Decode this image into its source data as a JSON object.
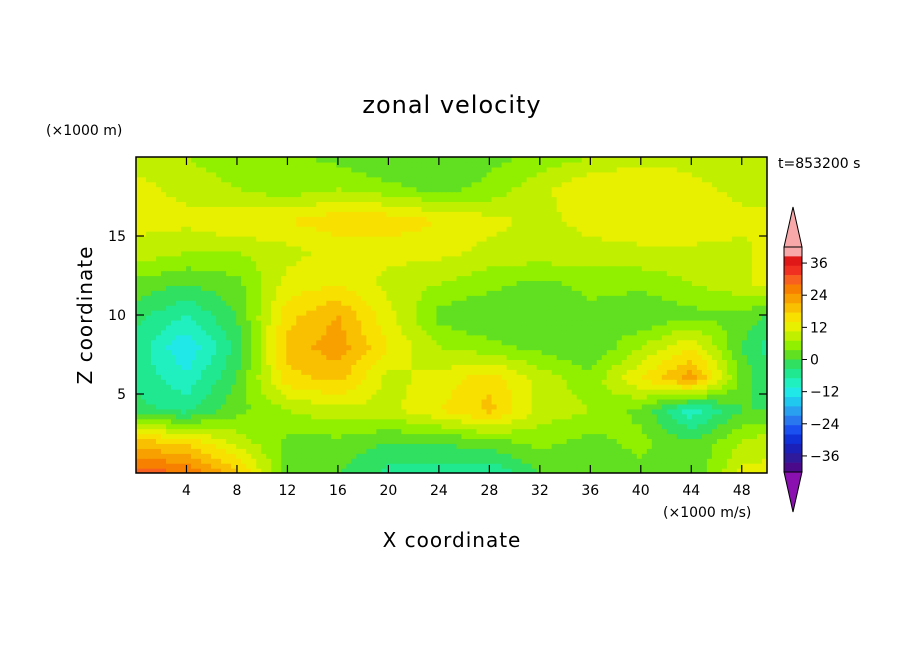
{
  "chart_data": {
    "type": "heatmap",
    "title": "zonal velocity",
    "xlabel": "X coordinate",
    "ylabel": "Z coordinate",
    "y_unit_label": "(×1000 m)",
    "x_unit_label": "(×1000 m/s)",
    "time_label": "t=853200 s",
    "xlim": [
      0,
      50
    ],
    "ylim": [
      0,
      20
    ],
    "x_ticks": [
      "4",
      "8",
      "12",
      "16",
      "20",
      "24",
      "28",
      "32",
      "36",
      "40",
      "44",
      "48"
    ],
    "y_ticks": [
      "5",
      "10",
      "15"
    ],
    "colorbar": {
      "levels": [
        -42,
        -39,
        -36,
        -33,
        -30,
        -27,
        -24,
        -21,
        -18,
        -15,
        -12,
        -9,
        -6,
        -3,
        0,
        3,
        6,
        9,
        12,
        15,
        18,
        21,
        24,
        27,
        30,
        33,
        36,
        39,
        42
      ],
      "colors": [
        "#4a0a8a",
        "#2e1a9a",
        "#1a20b8",
        "#1030d8",
        "#1a50f0",
        "#2a78f0",
        "#2aa0f0",
        "#20c8f0",
        "#20e8e8",
        "#20f0c0",
        "#20e890",
        "#30e060",
        "#60e020",
        "#90f000",
        "#c0f000",
        "#e8f000",
        "#f8e000",
        "#f8c000",
        "#f8a000",
        "#f88000",
        "#f86020",
        "#f03020",
        "#e01818",
        "#f8a8a8"
      ],
      "under_color": "#8a10b0",
      "over_color": "#f8a8a8",
      "tick_labels": [
        "36",
        "24",
        "12",
        "0",
        "−12",
        "−24",
        "−36"
      ]
    },
    "field_sample_grid": {
      "x": [
        0,
        4,
        8,
        12,
        16,
        20,
        24,
        28,
        32,
        36,
        40,
        44,
        48,
        50
      ],
      "z": [
        0,
        2,
        4,
        6,
        8,
        10,
        12,
        14,
        16,
        18,
        20
      ],
      "values": [
        [
          20,
          18,
          10,
          -4,
          -6,
          -10,
          -10,
          -12,
          -6,
          -6,
          -4,
          -6,
          4,
          4
        ],
        [
          10,
          8,
          2,
          -4,
          -4,
          -6,
          -6,
          -4,
          -2,
          -4,
          -2,
          -6,
          0,
          2
        ],
        [
          -8,
          -10,
          -4,
          0,
          2,
          2,
          6,
          10,
          2,
          0,
          -4,
          -14,
          -6,
          -6
        ],
        [
          -10,
          -14,
          -6,
          8,
          10,
          2,
          4,
          8,
          2,
          -2,
          6,
          14,
          -4,
          -8
        ],
        [
          -10,
          -18,
          -8,
          10,
          14,
          6,
          0,
          -2,
          -4,
          -6,
          0,
          6,
          -6,
          -10
        ],
        [
          -8,
          -12,
          -6,
          8,
          12,
          4,
          -4,
          -6,
          -6,
          -4,
          -6,
          -4,
          -4,
          -6
        ],
        [
          -4,
          -6,
          -4,
          4,
          6,
          2,
          0,
          -2,
          -4,
          -2,
          -2,
          0,
          2,
          4
        ],
        [
          2,
          0,
          0,
          2,
          4,
          4,
          4,
          2,
          2,
          2,
          2,
          2,
          2,
          4
        ],
        [
          4,
          4,
          6,
          6,
          8,
          8,
          6,
          4,
          2,
          4,
          6,
          6,
          4,
          4
        ],
        [
          4,
          2,
          0,
          -2,
          0,
          -2,
          -4,
          -2,
          2,
          6,
          6,
          4,
          2,
          2
        ],
        [
          2,
          0,
          -2,
          -2,
          -4,
          -6,
          -6,
          -4,
          -2,
          0,
          2,
          2,
          0,
          0
        ]
      ]
    }
  }
}
